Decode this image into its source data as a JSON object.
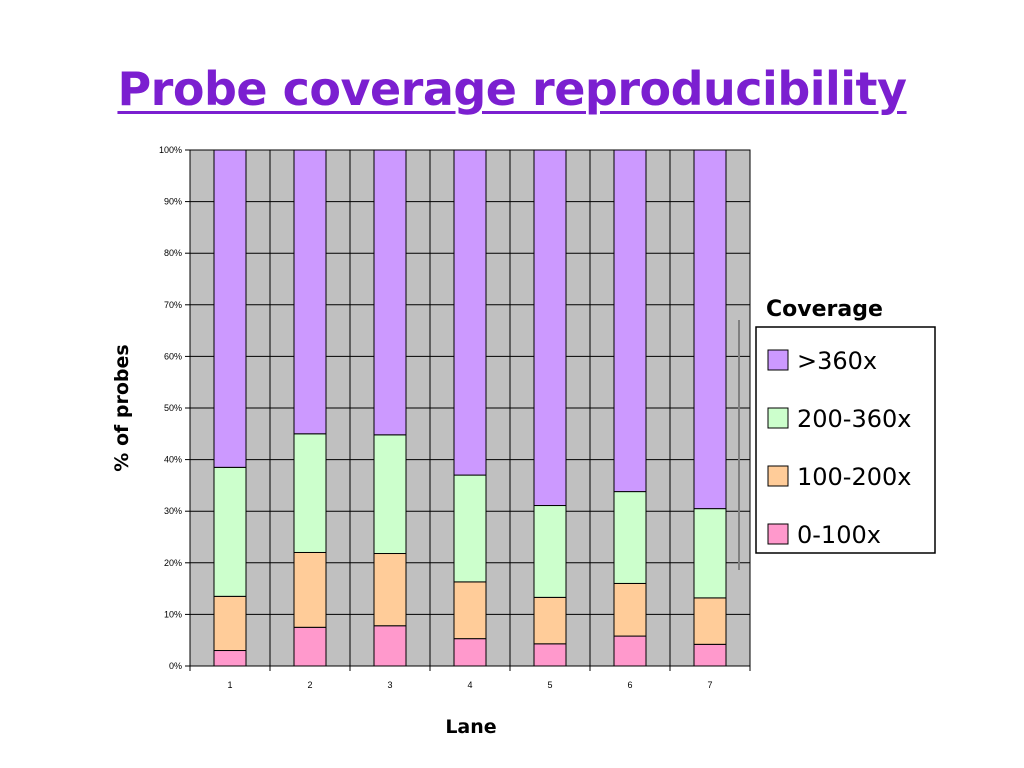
{
  "slide": {
    "title": "Probe coverage reproducibility"
  },
  "colors": {
    "plot_background": "#c0c0c0",
    "gt360": "#cc99ff",
    "c200_360": "#ccffcc",
    "c100_200": "#ffcc99",
    "c0_100": "#ff99cc"
  },
  "chart_data": {
    "type": "bar",
    "stacked": true,
    "categories": [
      "1",
      "2",
      "3",
      "4",
      "5",
      "6",
      "7"
    ],
    "xlabel": "Lane",
    "ylabel": "% of probes",
    "ylim": [
      0,
      100
    ],
    "yticks": [
      "0%",
      "10%",
      "20%",
      "30%",
      "40%",
      "50%",
      "60%",
      "70%",
      "80%",
      "90%",
      "100%"
    ],
    "grid": true,
    "legend": {
      "title": "Coverage",
      "position": "right"
    },
    "series": [
      {
        "name": "0-100x",
        "color": "#ff99cc",
        "values": [
          3,
          7.5,
          7.8,
          5.3,
          4.3,
          5.8,
          4.2
        ]
      },
      {
        "name": "100-200x",
        "color": "#ffcc99",
        "values": [
          10.5,
          14.5,
          14,
          11,
          9,
          10.2,
          9
        ]
      },
      {
        "name": "200-360x",
        "color": "#ccffcc",
        "values": [
          25,
          23,
          23,
          20.7,
          17.8,
          17.8,
          17.3
        ]
      },
      {
        "name": ">360x",
        "color": "#cc99ff",
        "values": [
          61.5,
          55,
          55.2,
          63,
          68.9,
          66.2,
          69.5
        ]
      }
    ]
  }
}
